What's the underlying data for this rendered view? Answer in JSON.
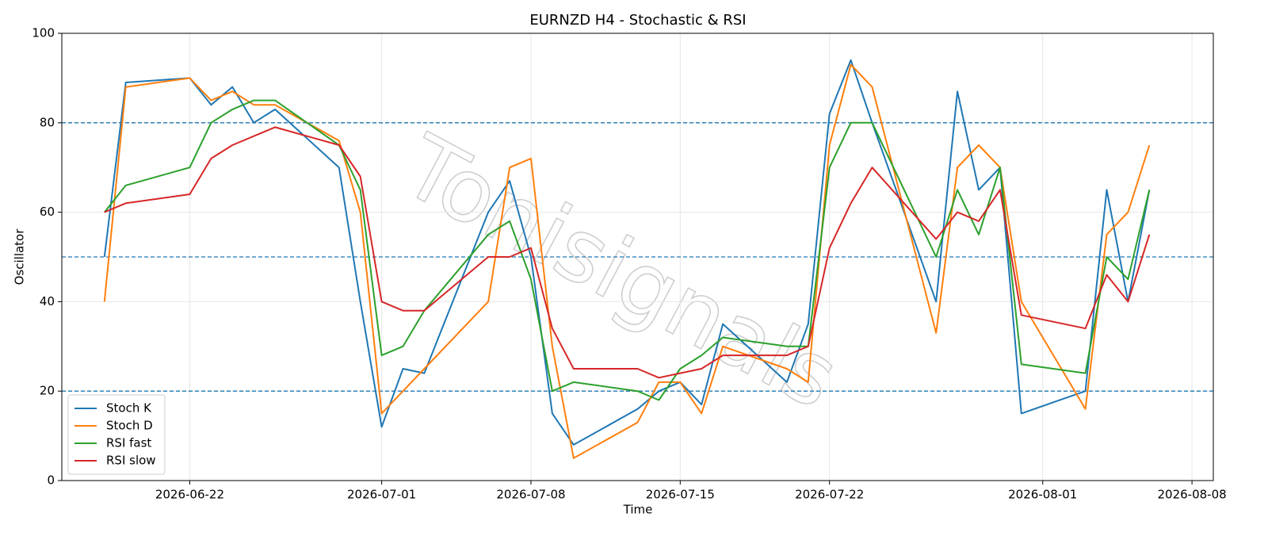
{
  "chart_data": {
    "type": "line",
    "title": "EURNZD H4 - Stochastic & RSI",
    "x_label": "Time",
    "y_label": "Oscillator",
    "watermark": "Tonisignals",
    "x": [
      "2026-06-18",
      "2026-06-19",
      "2026-06-22",
      "2026-06-23",
      "2026-06-24",
      "2026-06-25",
      "2026-06-26",
      "2026-06-29",
      "2026-06-30",
      "2026-07-01",
      "2026-07-02",
      "2026-07-03",
      "2026-07-06",
      "2026-07-07",
      "2026-07-08",
      "2026-07-09",
      "2026-07-10",
      "2026-07-13",
      "2026-07-14",
      "2026-07-15",
      "2026-07-16",
      "2026-07-17",
      "2026-07-20",
      "2026-07-21",
      "2026-07-22",
      "2026-07-23",
      "2026-07-24",
      "2026-07-27",
      "2026-07-28",
      "2026-07-29",
      "2026-07-30",
      "2026-07-31",
      "2026-08-03",
      "2026-08-04",
      "2026-08-05",
      "2026-08-06"
    ],
    "series": [
      {
        "name": "Stoch K",
        "color": "#1f77b4",
        "values": [
          50,
          89,
          90,
          84,
          88,
          80,
          83,
          70,
          40,
          12,
          25,
          24,
          60,
          67,
          50,
          15,
          8,
          16,
          20,
          22,
          17,
          35,
          22,
          35,
          82,
          94,
          80,
          40,
          87,
          65,
          70,
          15,
          20,
          65,
          40,
          65
        ]
      },
      {
        "name": "Stoch D",
        "color": "#ff7f0e",
        "values": [
          40,
          88,
          90,
          85,
          87,
          84,
          84,
          76,
          60,
          15,
          20,
          25,
          40,
          70,
          72,
          30,
          5,
          13,
          22,
          22,
          15,
          30,
          25,
          22,
          75,
          93,
          88,
          33,
          70,
          75,
          70,
          40,
          16,
          55,
          60,
          75
        ]
      },
      {
        "name": "RSI fast",
        "color": "#2ca02c",
        "values": [
          60,
          66,
          70,
          80,
          83,
          85,
          85,
          75,
          65,
          28,
          30,
          38,
          55,
          58,
          45,
          20,
          22,
          20,
          18,
          25,
          28,
          32,
          30,
          30,
          70,
          80,
          80,
          50,
          65,
          55,
          70,
          26,
          24,
          50,
          45,
          65
        ]
      },
      {
        "name": "RSI slow",
        "color": "#d62728",
        "values": [
          60,
          62,
          64,
          72,
          75,
          77,
          79,
          75,
          68,
          40,
          38,
          38,
          50,
          50,
          52,
          34,
          25,
          25,
          23,
          24,
          25,
          28,
          28,
          30,
          52,
          62,
          70,
          54,
          60,
          58,
          65,
          37,
          34,
          46,
          40,
          55
        ]
      }
    ],
    "xlim": [
      "2026-06-16",
      "2026-08-09"
    ],
    "xticks": [
      "2026-06-22",
      "2026-07-01",
      "2026-07-08",
      "2026-07-15",
      "2026-07-22",
      "2026-08-01",
      "2026-08-08"
    ],
    "ylim": [
      0,
      100
    ],
    "yticks": [
      0,
      20,
      40,
      60,
      80,
      100
    ],
    "hlines": [
      20,
      50,
      80
    ],
    "hline_color": "#1f77b4",
    "grid": true,
    "legend": "lower left"
  }
}
